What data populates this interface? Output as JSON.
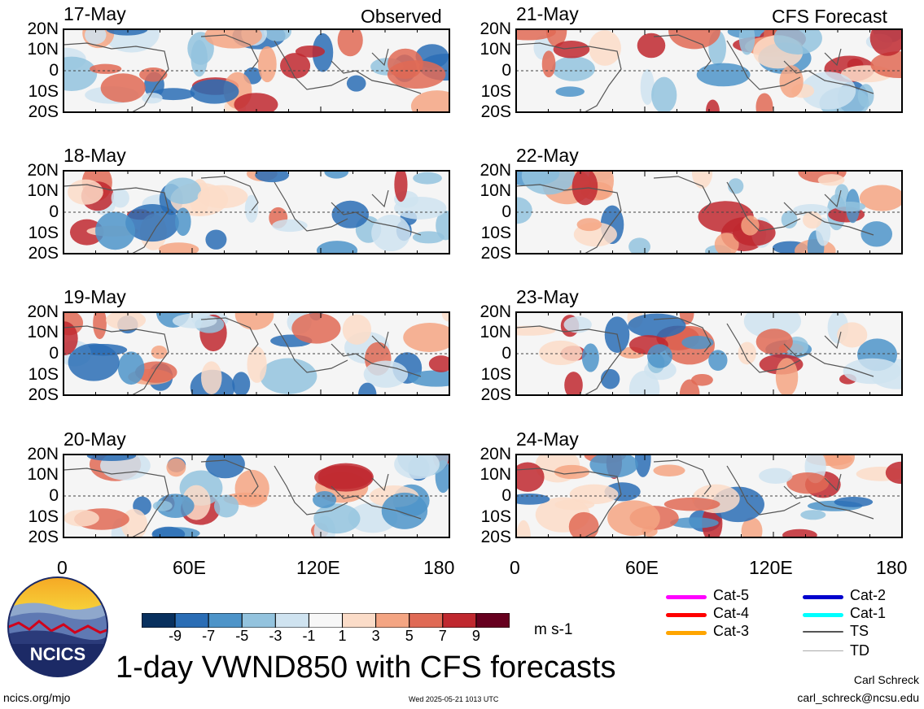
{
  "headers": {
    "left": "Observed",
    "right": "CFS Forecast"
  },
  "panels": [
    {
      "date": "17-May",
      "column": "left"
    },
    {
      "date": "18-May",
      "column": "left"
    },
    {
      "date": "19-May",
      "column": "left"
    },
    {
      "date": "20-May",
      "column": "left"
    },
    {
      "date": "21-May",
      "column": "right"
    },
    {
      "date": "22-May",
      "column": "right"
    },
    {
      "date": "23-May",
      "column": "right"
    },
    {
      "date": "24-May",
      "column": "right"
    }
  ],
  "lat_labels": [
    "20N",
    "10N",
    "0",
    "10S",
    "20S"
  ],
  "lon_labels": [
    "0",
    "60E",
    "120E",
    "180"
  ],
  "colorbar": {
    "colors": [
      "#08305e",
      "#2a6db5",
      "#4d94c9",
      "#93c3de",
      "#cfe3f0",
      "#f7f7f7",
      "#fbdcc8",
      "#f4a583",
      "#e06a55",
      "#c0282f",
      "#67001f"
    ],
    "labels": [
      "-9",
      "-7",
      "-5",
      "-3",
      "-1",
      "1",
      "3",
      "5",
      "7",
      "9"
    ],
    "units": "m s-1"
  },
  "storm_legend": [
    {
      "label": "Cat-5",
      "color": "#ff00ff"
    },
    {
      "label": "Cat-4",
      "color": "#ff0000"
    },
    {
      "label": "Cat-3",
      "color": "#ffa500"
    },
    {
      "label": "Cat-2",
      "color": "#0000cd"
    },
    {
      "label": "Cat-1",
      "color": "#00ffff"
    },
    {
      "label": "TS",
      "color": "#555555"
    },
    {
      "label": "TD",
      "color": "#aaaaaa"
    }
  ],
  "logo_text": "NCICS",
  "title": "1-day VWND850 with CFS forecasts",
  "footer": {
    "url": "ncics.org/mjo",
    "timestamp": "Wed 2025-05-21 1013 UTC",
    "author": "Carl Schreck",
    "email": "carl_schreck@ncsu.edu"
  }
}
